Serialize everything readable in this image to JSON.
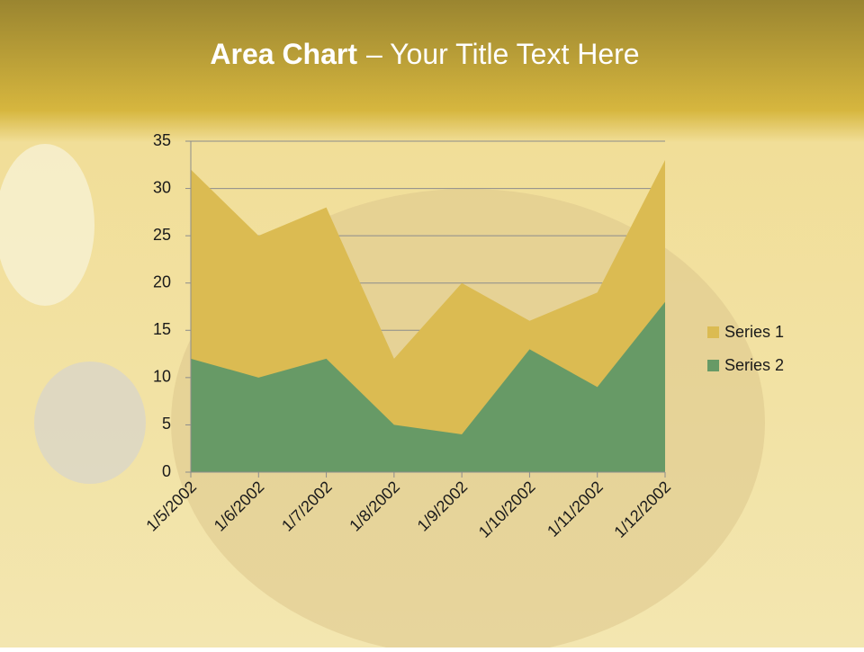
{
  "chart_data": {
    "type": "area",
    "title": [
      "Area Chart",
      "– Your Title Text Here"
    ],
    "categories": [
      "1/5/2002",
      "1/6/2002",
      "1/7/2002",
      "1/8/2002",
      "1/9/2002",
      "1/10/2002",
      "1/11/2002",
      "1/12/2002"
    ],
    "series": [
      {
        "name": "Series 1",
        "color": "#dbbb52",
        "values": [
          32,
          25,
          28,
          12,
          20,
          16,
          19,
          33
        ]
      },
      {
        "name": "Series 2",
        "color": "#679a66",
        "values": [
          12,
          10,
          12,
          5,
          4,
          13,
          9,
          18
        ]
      }
    ],
    "ylim": [
      0,
      35
    ],
    "yticks": [
      0,
      5,
      10,
      15,
      20,
      25,
      30,
      35
    ],
    "grid": true,
    "legend": "right"
  }
}
